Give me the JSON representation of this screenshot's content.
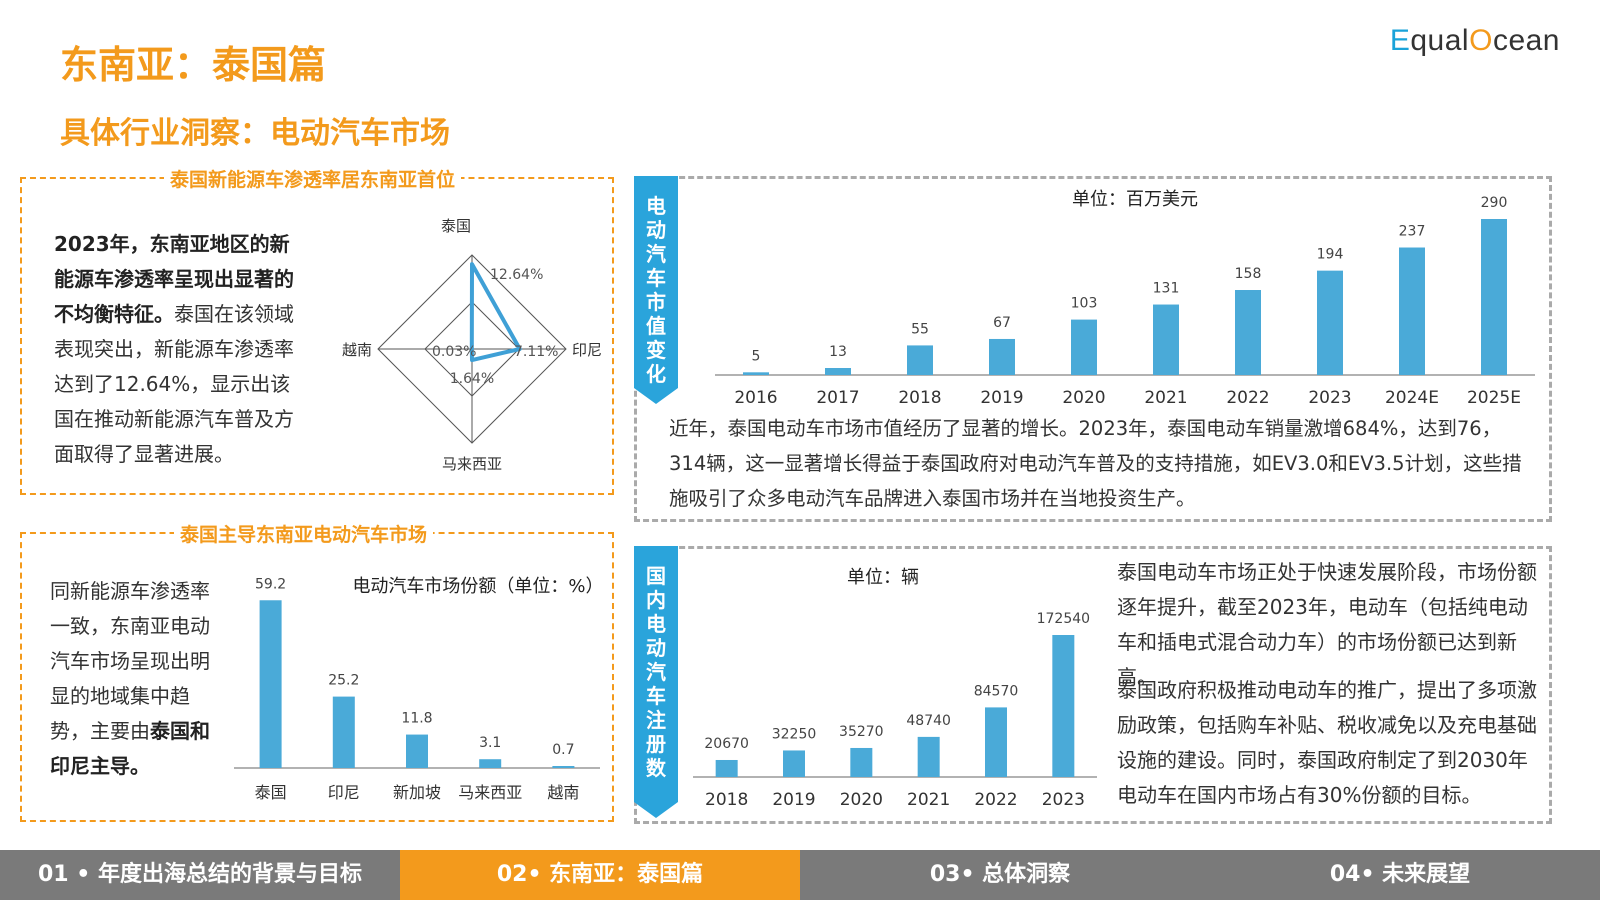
{
  "header": {
    "title": "东南亚：泰国篇",
    "subtitle": "具体行业洞察：电动汽车市场",
    "logo_text": "EqualOcean"
  },
  "colors": {
    "accent": "#F39A1C",
    "bar": "#4AAAD8",
    "tab": "#2AA4DB",
    "nav_inactive": "#7a7a7a"
  },
  "panel1": {
    "title": "泰国新能源车渗透率居东南亚首位",
    "para_bold": "2023年，东南亚地区的新能源车渗透率呈现出显著的不均衡特征。",
    "para_rest": "泰国在该领域表现突出，新能源车渗透率达到了12.64%，显示出该国在推动新能源汽车普及方面取得了显著进展。"
  },
  "panel2": {
    "title": "泰国主导东南亚电动汽车市场",
    "para_plain": "同新能源车渗透率一致，东南亚电动汽车市场呈现出明显的地域集中趋势，主要由",
    "para_bold": "泰国和印尼主导。"
  },
  "panel3": {
    "tab": "电动汽车市值变化",
    "paragraph": "近年，泰国电动车市场市值经历了显著的增长。2023年，泰国电动车销量激增684%，达到76，314辆，这一显著增长得益于泰国政府对电动汽车普及的支持措施，如EV3.0和EV3.5计划，这些措施吸引了众多电动汽车品牌进入泰国市场并在当地投资生产。"
  },
  "panel4": {
    "tab": "国内电动汽车注册数",
    "para1": "泰国电动车市场正处于快速发展阶段，市场份额逐年提升，截至2023年，电动车（包括纯电动车和插电式混合动力车）的市场份额已达到新高。",
    "para2": "泰国政府积极推动电动车的推广，提出了多项激励政策，包括购车补贴、税收减免以及充电基础设施的建设。同时，泰国政府制定了到2030年电动车在国内市场占有30%份额的目标。"
  },
  "nav": {
    "items": [
      "01 • 年度出海总结的背景与目标",
      "02• 东南亚：泰国篇",
      "03• 总体洞察",
      "04• 未来展望"
    ],
    "active_index": 1
  },
  "chart_data": [
    {
      "type": "radar",
      "categories": [
        "泰国",
        "印尼",
        "马来西亚",
        "越南"
      ],
      "values": [
        12.64,
        7.11,
        1.64,
        0.03
      ],
      "value_labels": [
        "12.64%",
        "7.11%",
        "1.64%",
        "0.03%"
      ]
    },
    {
      "type": "bar",
      "title": "电动汽车市场份额（单位：%）",
      "categories": [
        "泰国",
        "印尼",
        "新加坡",
        "马来西亚",
        "越南"
      ],
      "values": [
        59.2,
        25.2,
        11.8,
        3.1,
        0.7
      ],
      "ylim": [
        0,
        60
      ]
    },
    {
      "type": "bar",
      "title": "单位：百万美元",
      "categories": [
        "2016",
        "2017",
        "2018",
        "2019",
        "2020",
        "2021",
        "2022",
        "2023",
        "2024E",
        "2025E"
      ],
      "values": [
        5,
        13,
        55,
        67,
        103,
        131,
        158,
        194,
        237,
        290
      ],
      "ylim": [
        0,
        290
      ]
    },
    {
      "type": "bar",
      "title": "单位：辆",
      "categories": [
        "2018",
        "2019",
        "2020",
        "2021",
        "2022",
        "2023"
      ],
      "values": [
        20670,
        32250,
        35270,
        48740,
        84570,
        172540
      ],
      "ylim": [
        0,
        172540
      ]
    }
  ]
}
